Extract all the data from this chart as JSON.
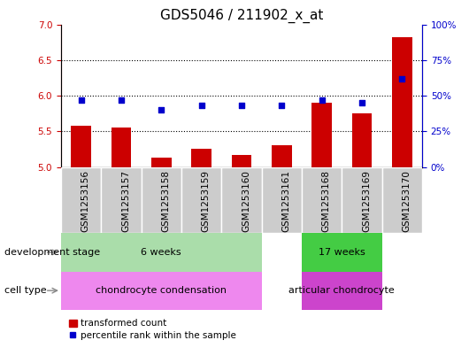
{
  "title": "GDS5046 / 211902_x_at",
  "samples": [
    "GSM1253156",
    "GSM1253157",
    "GSM1253158",
    "GSM1253159",
    "GSM1253160",
    "GSM1253161",
    "GSM1253168",
    "GSM1253169",
    "GSM1253170"
  ],
  "bar_values": [
    5.58,
    5.55,
    5.13,
    5.25,
    5.17,
    5.3,
    5.9,
    5.75,
    6.82
  ],
  "dot_values": [
    47,
    47,
    40,
    43,
    43,
    43,
    47,
    45,
    62
  ],
  "bar_color": "#cc0000",
  "dot_color": "#0000cc",
  "left_ylim": [
    5.0,
    7.0
  ],
  "left_yticks": [
    5.0,
    5.5,
    6.0,
    6.5,
    7.0
  ],
  "right_ylim": [
    0,
    100
  ],
  "right_yticks": [
    0,
    25,
    50,
    75,
    100
  ],
  "right_yticklabels": [
    "0%",
    "25%",
    "50%",
    "75%",
    "100%"
  ],
  "hlines": [
    5.5,
    6.0,
    6.5
  ],
  "dev_stage_groups": [
    {
      "label": "6 weeks",
      "start": 0,
      "end": 5,
      "color": "#aaddaa"
    },
    {
      "label": "17 weeks",
      "start": 6,
      "end": 8,
      "color": "#44cc44"
    }
  ],
  "cell_type_groups": [
    {
      "label": "chondrocyte condensation",
      "start": 0,
      "end": 5,
      "color": "#ee88ee"
    },
    {
      "label": "articular chondrocyte",
      "start": 6,
      "end": 8,
      "color": "#cc44cc"
    }
  ],
  "dev_stage_label": "development stage",
  "cell_type_label": "cell type",
  "legend_bar_label": "transformed count",
  "legend_dot_label": "percentile rank within the sample",
  "bar_width": 0.5,
  "title_fontsize": 11,
  "tick_fontsize": 7.5,
  "annotation_fontsize": 8,
  "group_label_fontsize": 8,
  "legend_fontsize": 7.5,
  "left_axis_color": "#cc0000",
  "right_axis_color": "#0000cc",
  "sample_box_color": "#cccccc",
  "n_samples": 9,
  "dev_stage_6weeks_count": 6,
  "dev_stage_17weeks_count": 3
}
